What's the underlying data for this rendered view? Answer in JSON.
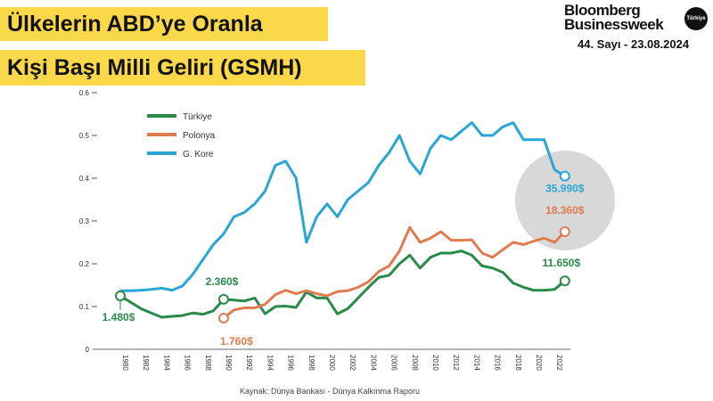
{
  "header": {
    "title_line1": "Ülkelerin ABD’ye Oranla",
    "title_line2": "Kişi Başı Milli Geliri (GSMH)",
    "brand_line1": "Bloomberg",
    "brand_line2": "Businessweek",
    "brand_badge": "Türkiye",
    "issue": "44. Sayı - 23.08.2024"
  },
  "watermark": {
    "line1": "Bloomberg",
    "line2": "Businessweek",
    "badge": "Türkiye"
  },
  "source": "Kaynak: Dünya Bankası - Dünya Kalkınma Raporu",
  "chart_data": {
    "type": "line",
    "title": "",
    "xlabel": "",
    "ylabel": "",
    "xlim": [
      1980,
      2023
    ],
    "ylim": [
      0,
      0.6
    ],
    "yticks": [
      "0",
      "0.1",
      "0.2",
      "0.3",
      "0.4",
      "0.5",
      "0.6"
    ],
    "xticks": [
      "1980",
      "1982",
      "1984",
      "1986",
      "1988",
      "1990",
      "1992",
      "1994",
      "1996",
      "1998",
      "2000",
      "2002",
      "2004",
      "2006",
      "2008",
      "2010",
      "2012",
      "2014",
      "2016",
      "2018",
      "2020",
      "2022"
    ],
    "legend": "top-left",
    "grid": false,
    "colors": {
      "Türkiye": "#2a8a4a",
      "Polonya": "#e07a4f",
      "G. Kore": "#2aa6d4"
    },
    "series": [
      {
        "name": "Türkiye",
        "start": 1980,
        "values": [
          0.125,
          0.11,
          0.095,
          0.085,
          0.075,
          0.077,
          0.079,
          0.085,
          0.082,
          0.09,
          0.117,
          0.115,
          0.113,
          0.12,
          0.083,
          0.1,
          0.101,
          0.098,
          0.134,
          0.12,
          0.12,
          0.083,
          0.095,
          0.12,
          0.145,
          0.168,
          0.173,
          0.2,
          0.22,
          0.19,
          0.215,
          0.225,
          0.225,
          0.23,
          0.22,
          0.195,
          0.19,
          0.18,
          0.155,
          0.145,
          0.138,
          0.138,
          0.14,
          0.16
        ]
      },
      {
        "name": "Polonya",
        "start": 1990,
        "values": [
          0.073,
          0.092,
          0.097,
          0.097,
          0.105,
          0.128,
          0.138,
          0.13,
          0.137,
          0.13,
          0.125,
          0.135,
          0.137,
          0.145,
          0.158,
          0.182,
          0.195,
          0.23,
          0.285,
          0.25,
          0.26,
          0.275,
          0.255,
          0.255,
          0.256,
          0.225,
          0.215,
          0.233,
          0.25,
          0.245,
          0.253,
          0.26,
          0.25,
          0.275
        ]
      },
      {
        "name": "G. Kore",
        "start": 1980,
        "values": [
          0.137,
          0.137,
          0.138,
          0.14,
          0.143,
          0.138,
          0.148,
          0.175,
          0.21,
          0.245,
          0.27,
          0.31,
          0.32,
          0.34,
          0.37,
          0.43,
          0.44,
          0.4,
          0.25,
          0.31,
          0.34,
          0.31,
          0.35,
          0.37,
          0.39,
          0.43,
          0.46,
          0.5,
          0.44,
          0.41,
          0.47,
          0.5,
          0.49,
          0.51,
          0.53,
          0.5,
          0.5,
          0.52,
          0.53,
          0.49,
          0.49,
          0.49,
          0.42,
          0.405
        ]
      }
    ],
    "annotations": [
      {
        "series": "Türkiye",
        "year": 1980,
        "text": "1.480$"
      },
      {
        "series": "Türkiye",
        "year": 1990,
        "text": "2.360$"
      },
      {
        "series": "Polonya",
        "year": 1990,
        "text": "1.760$"
      },
      {
        "series": "G. Kore",
        "year": 2023,
        "text": "35.990$"
      },
      {
        "series": "Polonya",
        "year": 2023,
        "text": "18.360$"
      },
      {
        "series": "Türkiye",
        "year": 2023,
        "text": "11.650$"
      }
    ]
  }
}
